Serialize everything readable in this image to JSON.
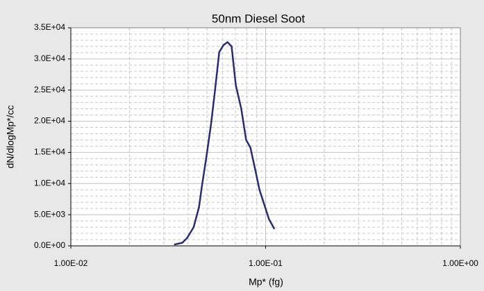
{
  "chart_data": {
    "type": "line",
    "title": "50nm Diesel Soot",
    "x_label": "Mp* (fg)",
    "y_label": "dN/dlogMp*/cc",
    "x_log": true,
    "grid": true,
    "minor_grid": true,
    "series": [
      {
        "name": "50nm Diesel Soot",
        "color": "#2a2a78",
        "x": [
          0.0339,
          0.0374,
          0.0396,
          0.0427,
          0.0455,
          0.0471,
          0.0494,
          0.0524,
          0.055,
          0.0578,
          0.0607,
          0.0637,
          0.0669,
          0.0703,
          0.075,
          0.0794,
          0.0835,
          0.0885,
          0.093,
          0.0985,
          0.104,
          0.111
        ],
        "values": [
          200,
          500,
          1300,
          3000,
          6200,
          9600,
          13800,
          19400,
          25000,
          31100,
          32200,
          32700,
          32000,
          25800,
          22000,
          17000,
          15800,
          12200,
          9000,
          6600,
          4300,
          2700
        ]
      }
    ],
    "xlim": [
      0.01,
      1
    ],
    "xticks": [
      {
        "value": 0.01,
        "label": "1.00E-02"
      },
      {
        "value": 0.1,
        "label": "1.00E-01"
      },
      {
        "value": 1,
        "label": "1.00E+00"
      }
    ],
    "ylim": [
      0,
      35000
    ],
    "yticks": [
      {
        "value": 0,
        "label": "0.0E+00"
      },
      {
        "value": 5000,
        "label": "5.0E+03"
      },
      {
        "value": 10000,
        "label": "1.0E+04"
      },
      {
        "value": 15000,
        "label": "1.5E+04"
      },
      {
        "value": 20000,
        "label": "2.0E+04"
      },
      {
        "value": 25000,
        "label": "2.5E+04"
      },
      {
        "value": 30000,
        "label": "3.0E+04"
      },
      {
        "value": 35000,
        "label": "3.5E+04"
      }
    ]
  }
}
